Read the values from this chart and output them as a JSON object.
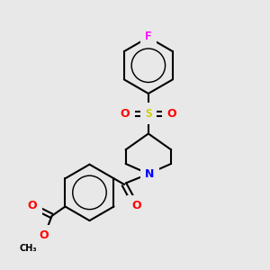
{
  "background_color": "#e8e8e8",
  "bond_color": "#000000",
  "atom_colors": {
    "F": "#ff00ff",
    "S": "#cccc00",
    "O": "#ff0000",
    "N": "#0000ff",
    "C": "#000000"
  },
  "figsize": [
    3.0,
    3.0
  ],
  "dpi": 100
}
